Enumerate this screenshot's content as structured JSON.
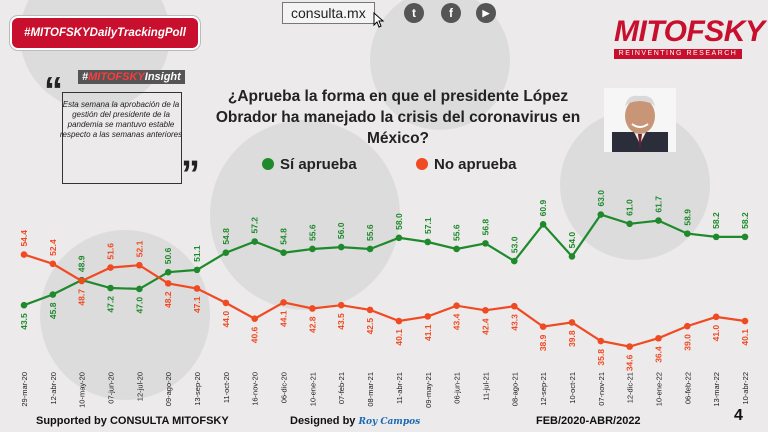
{
  "header": {
    "url": "consulta.mx",
    "social": [
      {
        "name": "twitter-icon",
        "glyph": "t"
      },
      {
        "name": "facebook-icon",
        "glyph": "f"
      },
      {
        "name": "youtube-icon",
        "glyph": "▶"
      }
    ],
    "hashtag": "#MITOFSKYDailyTrackingPoll",
    "brand": "MITOFSKY",
    "tagline": "REINVENTING RESEARCH"
  },
  "insight": {
    "title_prefix": "#",
    "title_brand": "MITOFSKY",
    "title_suffix": "Insight",
    "text": "Esta semana la aprobación de la gestión del presidente de la pandemia se mantuvo estable respecto a las semanas anteriores"
  },
  "question": "¿Aprueba la forma en que el presidente López Obrador ha manejado la crisis del coronavirus en México?",
  "footer": {
    "supported": "Supported by  CONSULTA  MITOFSKY",
    "designed": "Designed by",
    "designer": "Roy Campos",
    "range": "FEB/2020-ABR/2022",
    "page": "4"
  },
  "colors": {
    "approve": "#1e8a2c",
    "disapprove": "#f04a23",
    "brand": "#c8102e"
  },
  "chart_data": {
    "type": "line",
    "title": "¿Aprueba la forma en que el presidente López Obrador ha manejado la crisis del coronavirus en México?",
    "xlabel": "",
    "ylabel": "",
    "ylim": [
      30,
      70
    ],
    "grid": false,
    "legend_position": "top-left",
    "categories": [
      "29-mar-20",
      "12-abr-20",
      "10-may-20",
      "07-jun-20",
      "12-jul-20",
      "09-ago-20",
      "13-sep-20",
      "11-oct-20",
      "16-nov-20",
      "06-dic-20",
      "10-ene-21",
      "07-feb-21",
      "08-mar-21",
      "11-abr-21",
      "09-may-21",
      "06-jun-21",
      "11-jul-21",
      "08-ago-21",
      "12-sep-21",
      "10-oct-21",
      "07-nov-21",
      "12-dic-21",
      "10-ene-22",
      "06-feb-22",
      "13-mar-22",
      "10-abr-22"
    ],
    "series": [
      {
        "name": "Sí aprueba",
        "color": "#1e8a2c",
        "values": [
          43.5,
          45.8,
          48.9,
          47.2,
          47.0,
          50.6,
          51.1,
          54.8,
          57.2,
          54.8,
          55.6,
          56.0,
          55.6,
          58.0,
          57.1,
          55.6,
          56.8,
          53.0,
          60.9,
          54.0,
          63.0,
          61.0,
          61.7,
          58.9,
          58.2,
          58.2
        ]
      },
      {
        "name": "No aprueba",
        "color": "#f04a23",
        "values": [
          54.4,
          52.4,
          48.7,
          51.6,
          52.1,
          48.2,
          47.1,
          44.0,
          40.6,
          44.1,
          42.8,
          43.5,
          42.5,
          40.1,
          41.1,
          43.4,
          42.4,
          43.3,
          38.9,
          39.8,
          35.8,
          34.6,
          36.4,
          39.0,
          41.0,
          40.1
        ]
      }
    ]
  }
}
